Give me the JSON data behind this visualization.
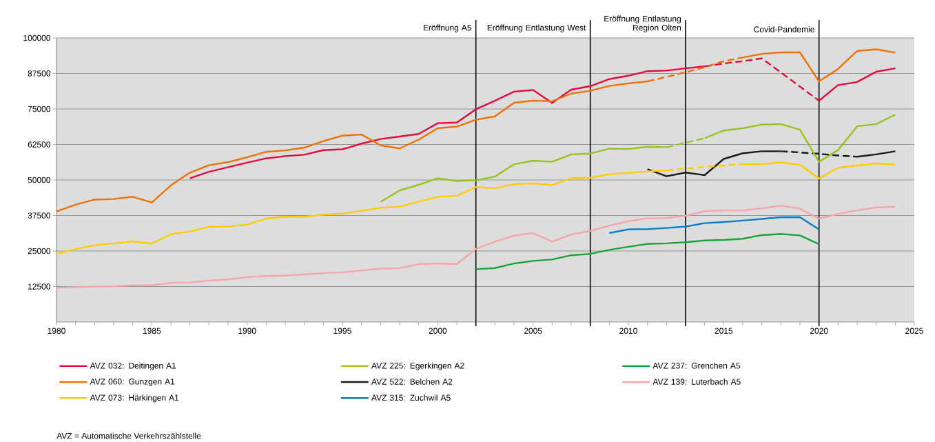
{
  "chart_data": {
    "type": "line",
    "x": [
      1980,
      1981,
      1982,
      1983,
      1984,
      1985,
      1986,
      1987,
      1988,
      1989,
      1990,
      1991,
      1992,
      1993,
      1994,
      1995,
      1996,
      1997,
      1998,
      1999,
      2000,
      2001,
      2002,
      2003,
      2004,
      2005,
      2006,
      2007,
      2008,
      2009,
      2010,
      2011,
      2012,
      2013,
      2014,
      2015,
      2016,
      2017,
      2018,
      2019,
      2020,
      2021,
      2022,
      2023,
      2024
    ],
    "series": [
      {
        "name": "AVZ 032: Deitingen A1",
        "color": "#e30a3c",
        "values": [
          null,
          null,
          null,
          null,
          null,
          null,
          null,
          50600,
          52900,
          54500,
          56100,
          57600,
          58400,
          58900,
          60500,
          60800,
          62800,
          64400,
          65300,
          66200,
          70000,
          70200,
          74900,
          77900,
          81100,
          81700,
          77100,
          81800,
          83000,
          85500,
          86700,
          88300,
          88500,
          89300,
          90000,
          null,
          null,
          null,
          null,
          null,
          77900,
          83400,
          84500,
          88100,
          89300
        ]
      },
      {
        "name": "AVZ 225: Egerkingen A2",
        "color": "#99c31c",
        "x": [
          1997,
          1998,
          1999,
          2000,
          2001,
          2002,
          2003,
          2004,
          2005,
          2006,
          2007,
          2008,
          2009,
          2010,
          2011,
          2012
        ],
        "values": [
          42300,
          46300,
          48300,
          50600,
          49600,
          49900,
          51200,
          55500,
          56800,
          56400,
          59000,
          59300,
          61000,
          60900,
          61700,
          61500
        ]
      },
      {
        "name": "AVZ 237: Grenchen A5",
        "color": "#1aa338",
        "x": [
          2002,
          2003,
          2004,
          2005,
          2006,
          2007,
          2008,
          2009,
          2010,
          2011,
          2012,
          2013,
          2014,
          2015,
          2016,
          2017,
          2018,
          2019,
          2020
        ],
        "values": [
          18600,
          19000,
          20600,
          21500,
          22000,
          23500,
          24000,
          25400,
          26500,
          27500,
          27700,
          28100,
          28700,
          28900,
          29300,
          30600,
          31000,
          30500,
          27400
        ]
      },
      {
        "name": "AVZ 060: Gunzgen A1",
        "color": "#ee7203",
        "x": [
          1980,
          1981,
          1982,
          1983,
          1984,
          1985,
          1986,
          1987,
          1988,
          1989,
          1990,
          1991,
          1992,
          1993,
          1994,
          1995,
          1996,
          1997,
          1998,
          1999,
          2000,
          2001,
          2002,
          2003,
          2004,
          2005,
          2006,
          2007,
          2008,
          2009,
          2010,
          2011
        ],
        "values": [
          38900,
          41300,
          43100,
          43300,
          44100,
          42100,
          48100,
          52600,
          55200,
          56300,
          58000,
          59900,
          60400,
          61400,
          63700,
          65600,
          66000,
          62200,
          61100,
          64200,
          68200,
          68800,
          71200,
          72400,
          77200,
          77900,
          77700,
          80400,
          81400,
          83100,
          84000,
          84700
        ]
      },
      {
        "name": "AVZ 522: Belchen A2",
        "color": "#1a1a1a",
        "x": [
          2011,
          2012,
          2013,
          2014,
          2015,
          2016,
          2017,
          2018
        ],
        "values": [
          53800,
          51300,
          52600,
          51700,
          57400,
          59400,
          60100,
          60100
        ]
      },
      {
        "name": "AVZ 139: Luterbach A5",
        "color": "#f4a6a8",
        "values": [
          12100,
          12300,
          12500,
          12600,
          12900,
          13000,
          13800,
          13900,
          14600,
          15000,
          15800,
          16200,
          16400,
          16800,
          17200,
          17500,
          18100,
          18800,
          18900,
          20400,
          20600,
          20400,
          25700,
          28300,
          30400,
          31300,
          28300,
          30800,
          32100,
          33900,
          35500,
          36500,
          36600,
          37400,
          39000,
          39300,
          39300,
          40000,
          41000,
          39900,
          36400,
          38000,
          39300,
          40300,
          40600
        ]
      },
      {
        "name": "AVZ 073: Härkingen A1",
        "color": "#ffcc00",
        "x": [
          1980,
          1981,
          1982,
          1983,
          1984,
          1985,
          1986,
          1987,
          1988,
          1989,
          1990,
          1991,
          1992,
          1993,
          1994,
          1995,
          1996,
          1997,
          1998,
          1999,
          2000,
          2001,
          2002,
          2003,
          2004,
          2005,
          2006,
          2007,
          2008,
          2009,
          2010,
          2011,
          2012
        ],
        "values": [
          24000,
          25700,
          27000,
          27700,
          28400,
          27600,
          30900,
          31900,
          33500,
          33600,
          34300,
          36400,
          37100,
          37000,
          37800,
          38200,
          39100,
          40200,
          40600,
          42400,
          44100,
          44400,
          47500,
          47100,
          48500,
          48800,
          48200,
          50600,
          50800,
          52000,
          52500,
          53000,
          53400
        ]
      },
      {
        "name": "AVZ 315: Zuchwil A5",
        "color": "#0a7ec2",
        "x": [
          2009,
          2010,
          2011,
          2012,
          2013,
          2014,
          2015,
          2016,
          2017,
          2018,
          2019,
          2020
        ],
        "values": [
          31300,
          32600,
          32700,
          33100,
          33600,
          34800,
          35200,
          35700,
          36300,
          36900,
          36900,
          32600
        ]
      },
      {
        "color": "#e30a3c",
        "line_style": "dashed",
        "x": [
          2014,
          2015,
          2016,
          2017,
          2020
        ],
        "values": [
          90000,
          91000,
          91800,
          92800,
          77900
        ]
      },
      {
        "color": "#ee7203",
        "line_style": "dashed",
        "x": [
          2011,
          2012,
          2013,
          2014,
          2015,
          2016
        ],
        "values": [
          84700,
          86300,
          87900,
          89700,
          91800,
          93100
        ]
      },
      {
        "color": "#99c31c",
        "line_style": "dashed",
        "x": [
          2012,
          2013,
          2014
        ],
        "values": [
          61500,
          63100,
          64700
        ]
      },
      {
        "color": "#1a1a1a",
        "line_style": "dashed",
        "x": [
          2018,
          2019,
          2020,
          2021,
          2022
        ],
        "values": [
          60100,
          59700,
          59200,
          58600,
          58200
        ]
      },
      {
        "color": "#ffcc00",
        "line_style": "dashed",
        "x": [
          2012,
          2013,
          2014,
          2015,
          2016
        ],
        "values": [
          53400,
          54000,
          54600,
          55100,
          55600
        ]
      },
      {
        "color": "#ee7203",
        "x": [
          2016,
          2017,
          2018,
          2019,
          2020,
          2021,
          2022,
          2023,
          2024
        ],
        "values": [
          93100,
          94400,
          94900,
          94900,
          84700,
          89100,
          95400,
          96000,
          94800
        ]
      },
      {
        "color": "#99c31c",
        "x": [
          2014,
          2015,
          2016,
          2017,
          2018,
          2019,
          2020,
          2021,
          2022,
          2023,
          2024
        ],
        "values": [
          64700,
          67400,
          68200,
          69500,
          69700,
          67700,
          56400,
          60500,
          68900,
          69700,
          73000
        ]
      },
      {
        "color": "#1a1a1a",
        "x": [
          2022,
          2023,
          2024
        ],
        "values": [
          58200,
          59000,
          60100
        ]
      },
      {
        "color": "#ffcc00",
        "x": [
          2016,
          2017,
          2018,
          2019,
          2020,
          2021,
          2022,
          2023,
          2024
        ],
        "values": [
          55600,
          55600,
          56200,
          55400,
          50500,
          54300,
          55100,
          55800,
          55400
        ]
      }
    ],
    "xlim": [
      1980,
      2025
    ],
    "ylim": [
      0,
      100000
    ],
    "xticks": [
      1980,
      {
        "value": 1981,
        "label": null
      },
      {
        "value": 1982,
        "label": null
      },
      {
        "value": 1983,
        "label": null
      },
      {
        "value": 1984,
        "label": null
      },
      1985,
      {
        "value": 1986,
        "label": null
      },
      {
        "value": 1987,
        "label": null
      },
      {
        "value": 1988,
        "label": null
      },
      {
        "value": 1989,
        "label": null
      },
      1990,
      {
        "value": 1991,
        "label": null
      },
      {
        "value": 1992,
        "label": null
      },
      {
        "value": 1993,
        "label": null
      },
      {
        "value": 1994,
        "label": null
      },
      1995,
      {
        "value": 1996,
        "label": null
      },
      {
        "value": 1997,
        "label": null
      },
      {
        "value": 1998,
        "label": null
      },
      {
        "value": 1999,
        "label": null
      },
      2000,
      {
        "value": 2001,
        "label": null
      },
      {
        "value": 2002,
        "label": null
      },
      {
        "value": 2003,
        "label": null
      },
      {
        "value": 2004,
        "label": null
      },
      2005,
      {
        "value": 2006,
        "label": null
      },
      {
        "value": 2007,
        "label": null
      },
      {
        "value": 2008,
        "label": null
      },
      {
        "value": 2009,
        "label": null
      },
      2010,
      {
        "value": 2011,
        "label": null
      },
      {
        "value": 2012,
        "label": null
      },
      {
        "value": 2013,
        "label": null
      },
      {
        "value": 2014,
        "label": null
      },
      2015,
      {
        "value": 2016,
        "label": null
      },
      {
        "value": 2017,
        "label": null
      },
      {
        "value": 2018,
        "label": null
      },
      {
        "value": 2019,
        "label": null
      },
      2020,
      {
        "value": 2021,
        "label": null
      },
      {
        "value": 2022,
        "label": null
      },
      {
        "value": 2023,
        "label": null
      },
      {
        "value": 2024,
        "label": null
      },
      2025
    ],
    "yticks": [
      12500,
      25000,
      37500,
      50000,
      62500,
      75000,
      87500,
      100000
    ],
    "ref_lines": [
      {
        "axis": "x",
        "value": 2002,
        "label": "Eröffnung A5",
        "color": "#000000"
      },
      {
        "axis": "x",
        "value": 2008,
        "label": "Eröffnung Entlastung West",
        "color": "#000000"
      },
      {
        "axis": "x",
        "value": 2013,
        "label": "Eröffnung Entlastung Region Olten",
        "color": "#000000"
      },
      {
        "axis": "x",
        "value": 2020,
        "label": "Covid-Pandemie",
        "color": "#000000"
      }
    ],
    "annotations": [
      "AVZ = Automatische Verkehrszählstelle"
    ],
    "grid": "y",
    "legend": "bottom",
    "marker": "none",
    "line_style": "solid"
  }
}
